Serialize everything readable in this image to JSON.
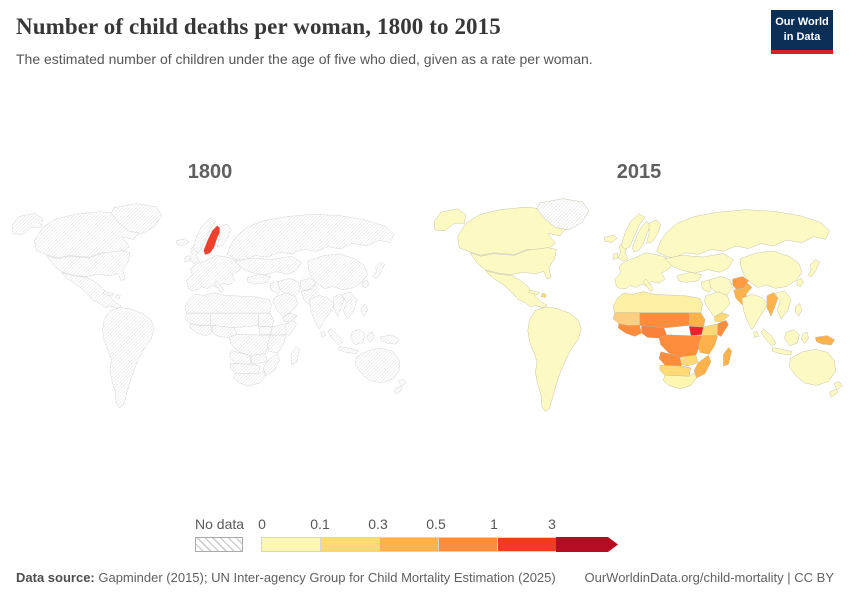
{
  "header": {
    "title": "Number of child deaths per woman, 1800 to 2015",
    "subtitle": "The estimated number of children under the age of five who died, given as a rate per woman.",
    "logo_line1": "Our World",
    "logo_line2": "in Data",
    "logo_bg": "#0a2e56",
    "logo_accent": "#d52120"
  },
  "maps": [
    {
      "year": "1800",
      "default_fill": "hatch",
      "border_color": "#c7c7c7",
      "regions": {
        "sweden": "#f0402c"
      }
    },
    {
      "year": "2015",
      "default_fill": "#fdf9c2",
      "border_color": "#b5b199",
      "regions": {
        "greenland": "hatch",
        "africa_north": "#fcf0a4",
        "mauritania_senegal": "#fecf7e",
        "sahel": "#fd8d3c",
        "sudan": "#feb24c",
        "west_africa": "#fd8d3c",
        "nigeria_ghana": "#f9813c",
        "south_sudan": "#e8252b",
        "ethiopia": "#fed976",
        "somalia": "#fd8d3c",
        "central_africa": "#fd8d3c",
        "east_africa": "#feb24c",
        "angola": "#fd8d3c",
        "zambia": "#fed976",
        "mozambique": "#feb24c",
        "namibia_botswana": "#fed976",
        "south_africa": "#fdf6b0",
        "madagascar": "#feb24c",
        "haiti": "#fed976",
        "afghanistan": "#fd9a42",
        "pakistan": "#feb24c",
        "yemen": "#fed976",
        "myanmar": "#feb24c",
        "png": "#feb24c"
      }
    }
  ],
  "legend": {
    "no_data_label": "No data",
    "tick_labels": [
      "0",
      "0.1",
      "0.3",
      "0.5",
      "1",
      "3"
    ],
    "bin_colors": [
      "#fef6b1",
      "#fed976",
      "#feb24c",
      "#fd8d3c",
      "#ee3b24",
      "#b40d23"
    ]
  },
  "footer": {
    "source_label": "Data source:",
    "source_text": " Gapminder (2015); UN Inter-agency Group for Child Mortality Estimation (2025)",
    "right_text": "OurWorldinData.org/child-mortality | CC BY"
  },
  "chart_data": {
    "type": "heatmap",
    "subtype": "choropleth world map comparison (two panels)",
    "title": "Number of child deaths per woman, 1800 to 2015",
    "unit": "child deaths per woman",
    "panels": [
      "1800",
      "2015"
    ],
    "legend": {
      "position": "bottom",
      "bins": [
        {
          "label": "0–0.1",
          "color": "#fef6b1"
        },
        {
          "label": "0.1–0.3",
          "color": "#fed976"
        },
        {
          "label": "0.3–0.5",
          "color": "#feb24c"
        },
        {
          "label": "0.5–1",
          "color": "#fd8d3c"
        },
        {
          "label": "1–3",
          "color": "#ee3b24"
        },
        {
          "label": "3+",
          "color": "#b40d23"
        },
        {
          "label": "No data",
          "color": "hatched"
        }
      ]
    },
    "values": {
      "1800": {
        "Sweden": "1–3",
        "all_other_countries": "No data"
      },
      "2015": {
        "most_countries_worldwide": "0–0.1",
        "mauritania_senegal_ethiopia_kenya_tanzania_zambia_namibia_botswana": "0.1–0.3",
        "sudan_east_africa_mozambique_madagascar_pakistan_myanmar_papua_new_guinea": "0.3–0.5",
        "sahel_west_and_central_africa_nigeria_somalia_angola_afghanistan": "0.5–1",
        "south_sudan": "1–3",
        "yemen_haiti": "0.1–0.3",
        "south_africa": "0–0.1",
        "greenland": "No data"
      }
    }
  }
}
